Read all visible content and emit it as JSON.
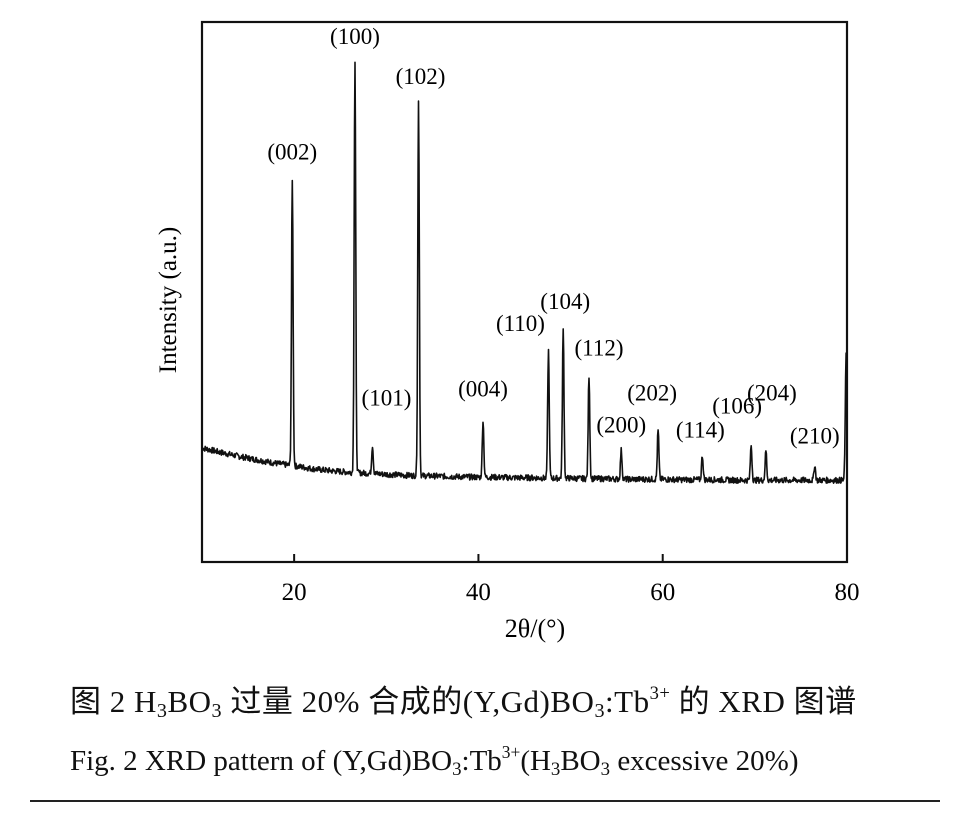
{
  "chart_data": {
    "type": "line",
    "title": "",
    "xlabel_text": "2θ/(°)",
    "ylabel": "Intensity (a.u.)",
    "xlim": [
      10,
      80
    ],
    "ylim": [
      0,
      100
    ],
    "xticks": [
      20,
      40,
      60,
      80
    ],
    "grid": false,
    "legend": "none",
    "line_color": "#111111",
    "baseline": [
      [
        10.0,
        18.5
      ],
      [
        12,
        17.6
      ],
      [
        14,
        16.8
      ],
      [
        16,
        16.1
      ],
      [
        18,
        15.4
      ],
      [
        20,
        14.9
      ],
      [
        22,
        14.3
      ],
      [
        24,
        13.9
      ],
      [
        26,
        13.6
      ],
      [
        28,
        13.4
      ],
      [
        30,
        13.2
      ],
      [
        32,
        13.0
      ],
      [
        34,
        12.9
      ],
      [
        36,
        12.8
      ],
      [
        38,
        12.7
      ],
      [
        40,
        12.6
      ],
      [
        42,
        12.6
      ],
      [
        44,
        12.5
      ],
      [
        46,
        12.5
      ],
      [
        48,
        12.4
      ],
      [
        50,
        12.4
      ],
      [
        52,
        12.3
      ],
      [
        54,
        12.3
      ],
      [
        56,
        12.2
      ],
      [
        58,
        12.2
      ],
      [
        60,
        12.2
      ],
      [
        62,
        12.1
      ],
      [
        64,
        12.1
      ],
      [
        66,
        12.1
      ],
      [
        68,
        12.0
      ],
      [
        70,
        12.0
      ],
      [
        72,
        12.0
      ],
      [
        74,
        12.0
      ],
      [
        76,
        12.0
      ],
      [
        78,
        12.0
      ],
      [
        80,
        12.0
      ]
    ],
    "peaks": [
      {
        "label": "(002)",
        "x": 19.8,
        "y": 72
      },
      {
        "label": "(100)",
        "x": 26.6,
        "y": 96
      },
      {
        "label": "(101)",
        "x": 28.5,
        "y": 19
      },
      {
        "label": "(102)",
        "x": 33.5,
        "y": 88
      },
      {
        "label": "(004)",
        "x": 40.5,
        "y": 24
      },
      {
        "label": "(110)",
        "x": 47.6,
        "y": 38
      },
      {
        "label": "(104)",
        "x": 49.2,
        "y": 42
      },
      {
        "label": "(112)",
        "x": 52.0,
        "y": 33
      },
      {
        "label": "(200)",
        "x": 55.5,
        "y": 18
      },
      {
        "label": "(202)",
        "x": 59.5,
        "y": 22
      },
      {
        "label": "(114)",
        "x": 64.3,
        "y": 17
      },
      {
        "label": "(106)",
        "x": 69.6,
        "y": 19
      },
      {
        "label": "(204)",
        "x": 71.2,
        "y": 18
      },
      {
        "label": "(210)",
        "x": 76.5,
        "y": 15
      },
      {
        "label": "",
        "x": 79.9,
        "y": 37
      }
    ]
  },
  "caption_cn": {
    "prefix": "图 2   H",
    "sub1": "3",
    "mid1": "BO",
    "sub2": "3",
    "mid2": " 过量 20% 合成的(Y,Gd)BO",
    "sub3": "3",
    "mid3": ":Tb",
    "sup1": "3+",
    "suffix": " 的 XRD 图谱"
  },
  "caption_en": {
    "prefix": "Fig. 2  XRD pattern of (Y,Gd)BO",
    "sub1": "3",
    "mid1": ":Tb",
    "sup1": "3+",
    "mid2": "(H",
    "sub2": "3",
    "mid3": "BO",
    "sub3": "3",
    "suffix": " excessive 20%)"
  }
}
